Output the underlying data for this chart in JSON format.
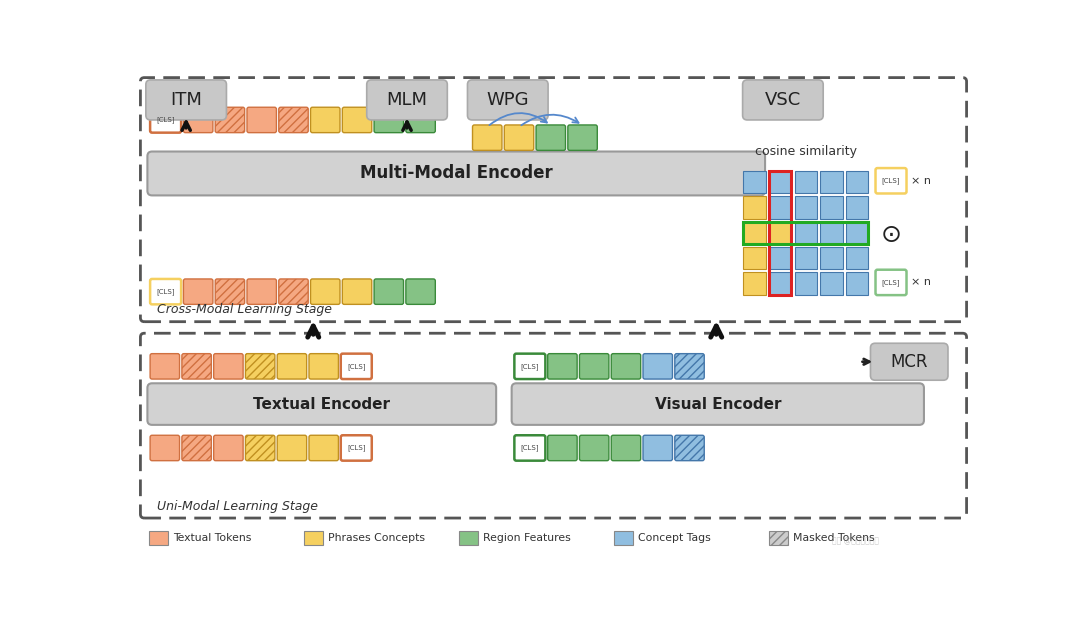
{
  "bg_color": "#ffffff",
  "salmon": "#F5A882",
  "yellow": "#F5D060",
  "green": "#85C285",
  "blue": "#90BEE0",
  "gray_box": "#C8C8C8",
  "encoder_bg": "#D2D2D2",
  "title_itm": "ITM",
  "title_mlm": "MLM",
  "title_wpg": "WPG",
  "title_vsc": "VSC",
  "title_mcr": "MCR",
  "label_multimodal": "Multi-Modal Encoder",
  "label_textual": "Textual Encoder",
  "label_visual": "Visual Encoder",
  "label_cross": "Cross-Modal Learning Stage",
  "label_uni": "Uni-Modal Learning Stage",
  "label_cosine": "cosine similarity",
  "legend_items": [
    "Textual Tokens",
    "Phrases Concepts",
    "Region Features",
    "Concept Tags",
    "Masked Tokens"
  ],
  "legend_colors": [
    "#F5A882",
    "#F5D060",
    "#85C285",
    "#90BEE0",
    "#CCCCCC"
  ],
  "legend_hatches": [
    null,
    null,
    null,
    null,
    "////"
  ],
  "grid_colors": [
    [
      "blue",
      "blue",
      "blue",
      "blue",
      "blue"
    ],
    [
      "yellow",
      "blue",
      "blue",
      "blue",
      "blue"
    ],
    [
      "yellow",
      "yellow",
      "blue",
      "blue",
      "blue"
    ],
    [
      "yellow",
      "blue",
      "blue",
      "blue",
      "blue"
    ],
    [
      "yellow",
      "blue",
      "blue",
      "blue",
      "blue"
    ]
  ]
}
